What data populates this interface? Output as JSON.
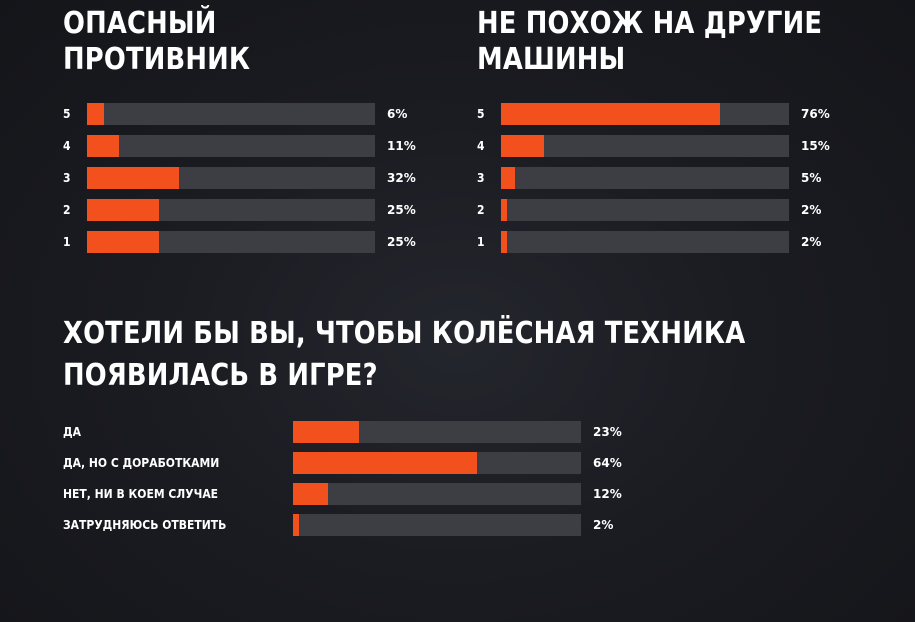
{
  "colors": {
    "background": "#1b1c22",
    "bar_fill": "#f2501d",
    "bar_track": "#3d3e44",
    "text": "#ffffff"
  },
  "headings": {
    "chart1": [
      "ОПАСНЫЙ",
      "ПРОТИВНИК"
    ],
    "chart2": [
      "НЕ ПОХОЖ НА ДРУГИЕ",
      "МАШИНЫ"
    ],
    "chart3": [
      "ХОТЕЛИ БЫ ВЫ, ЧТОБЫ КОЛЁСНАЯ ТЕХНИКА",
      "ПОЯВИЛАСЬ В ИГРЕ?"
    ]
  },
  "chart_data": [
    {
      "type": "bar",
      "orientation": "horizontal",
      "title": "ОПАСНЫЙ ПРОТИВНИК",
      "categories": [
        "5",
        "4",
        "3",
        "2",
        "1"
      ],
      "values": [
        6,
        11,
        32,
        25,
        25
      ],
      "value_labels": [
        "6%",
        "11%",
        "32%",
        "25%",
        "25%"
      ],
      "xlim": [
        0,
        100
      ],
      "unit": "%"
    },
    {
      "type": "bar",
      "orientation": "horizontal",
      "title": "НЕ ПОХОЖ НА ДРУГИЕ МАШИНЫ",
      "categories": [
        "5",
        "4",
        "3",
        "2",
        "1"
      ],
      "values": [
        76,
        15,
        5,
        2,
        2
      ],
      "value_labels": [
        "76%",
        "15%",
        "5%",
        "2%",
        "2%"
      ],
      "xlim": [
        0,
        100
      ],
      "unit": "%"
    },
    {
      "type": "bar",
      "orientation": "horizontal",
      "title": "ХОТЕЛИ БЫ ВЫ, ЧТОБЫ КОЛЁСНАЯ ТЕХНИКА ПОЯВИЛАСЬ В ИГРЕ?",
      "categories": [
        "ДА",
        "ДА, НО С ДОРАБОТКАМИ",
        "НЕТ, НИ В КОЕМ СЛУЧАЕ",
        "ЗАТРУДНЯЮСЬ ОТВЕТИТЬ"
      ],
      "values": [
        23,
        64,
        12,
        2
      ],
      "value_labels": [
        "23%",
        "64%",
        "12%",
        "2%"
      ],
      "xlim": [
        0,
        100
      ],
      "unit": "%"
    }
  ]
}
